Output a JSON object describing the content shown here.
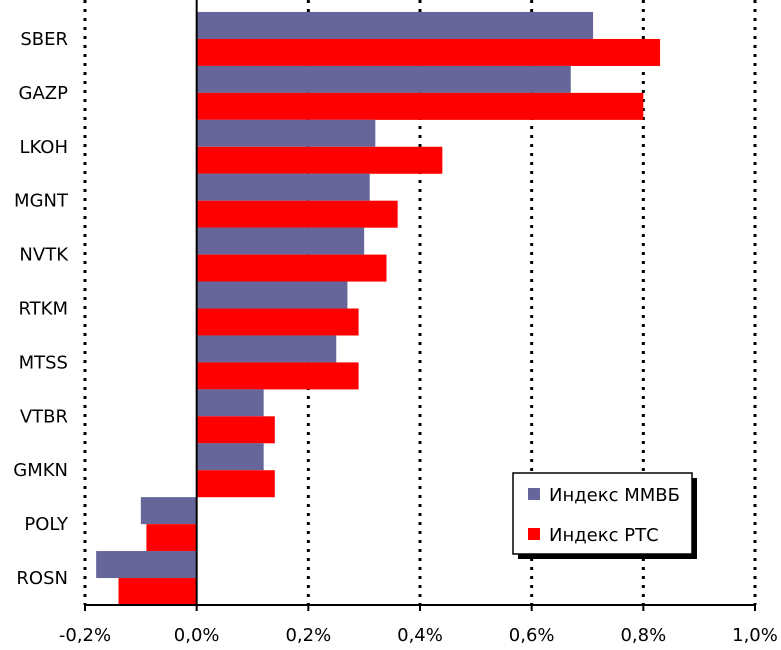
{
  "chart_data": {
    "type": "bar",
    "orientation": "horizontal",
    "title": "",
    "xlabel": "",
    "ylabel": "",
    "categories": [
      "SBER",
      "GAZP",
      "LKOH",
      "MGNT",
      "NVTK",
      "RTKM",
      "MTSS",
      "VTBR",
      "GMKN",
      "POLY",
      "ROSN"
    ],
    "series": [
      {
        "name": "Индекс ММВБ",
        "color": "#66669a",
        "values": [
          0.71,
          0.67,
          0.32,
          0.31,
          0.3,
          0.27,
          0.25,
          0.12,
          0.12,
          -0.1,
          -0.18
        ]
      },
      {
        "name": "Индекс РТС",
        "color": "#ff0000",
        "values": [
          0.83,
          0.8,
          0.44,
          0.36,
          0.34,
          0.29,
          0.29,
          0.14,
          0.14,
          -0.09,
          -0.14
        ]
      }
    ],
    "xlim": [
      -0.2,
      1.0
    ],
    "xticks": [
      -0.2,
      0.0,
      0.2,
      0.4,
      0.6,
      0.8,
      1.0
    ],
    "xtick_labels": [
      "-0,2%",
      "0,0%",
      "0,2%",
      "0,4%",
      "0,6%",
      "0,8%",
      "1,0%"
    ],
    "grid": "vertical-dotted",
    "legend_position": "bottom-right"
  }
}
